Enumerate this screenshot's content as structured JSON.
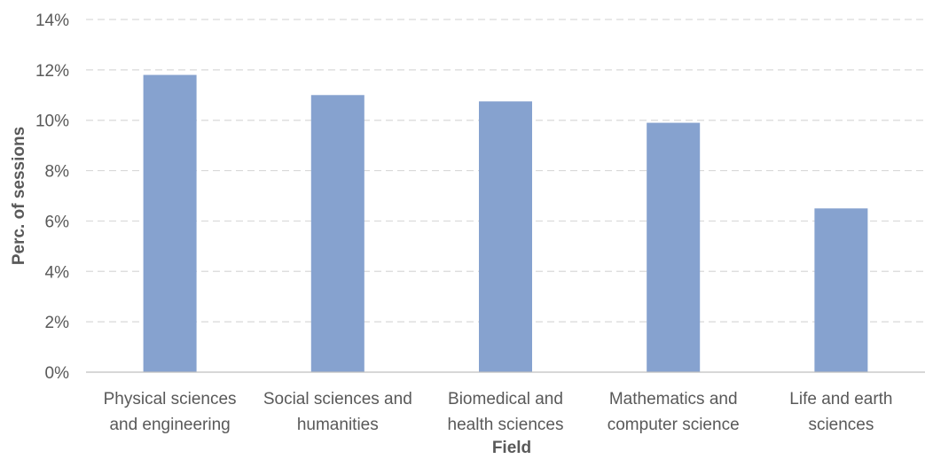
{
  "chart_data": {
    "type": "bar",
    "title": "",
    "xlabel": "Field",
    "ylabel": "Perc. of sessions",
    "categories": [
      [
        "Physical sciences",
        "and engineering"
      ],
      [
        "Social sciences and",
        "humanities"
      ],
      [
        "Biomedical and",
        "health sciences"
      ],
      [
        "Mathematics and",
        "computer science"
      ],
      [
        "Life and earth",
        "sciences"
      ]
    ],
    "values": [
      11.8,
      11.0,
      10.75,
      9.9,
      6.5
    ],
    "ylim": [
      0,
      14
    ],
    "yticks": [
      0,
      2,
      4,
      6,
      8,
      10,
      12,
      14
    ],
    "ytick_format": "percent",
    "grid": true,
    "legend": "none",
    "bar_color": "#86a2cf",
    "grid_color": "#d9d9d9",
    "text_color": "#595959"
  }
}
